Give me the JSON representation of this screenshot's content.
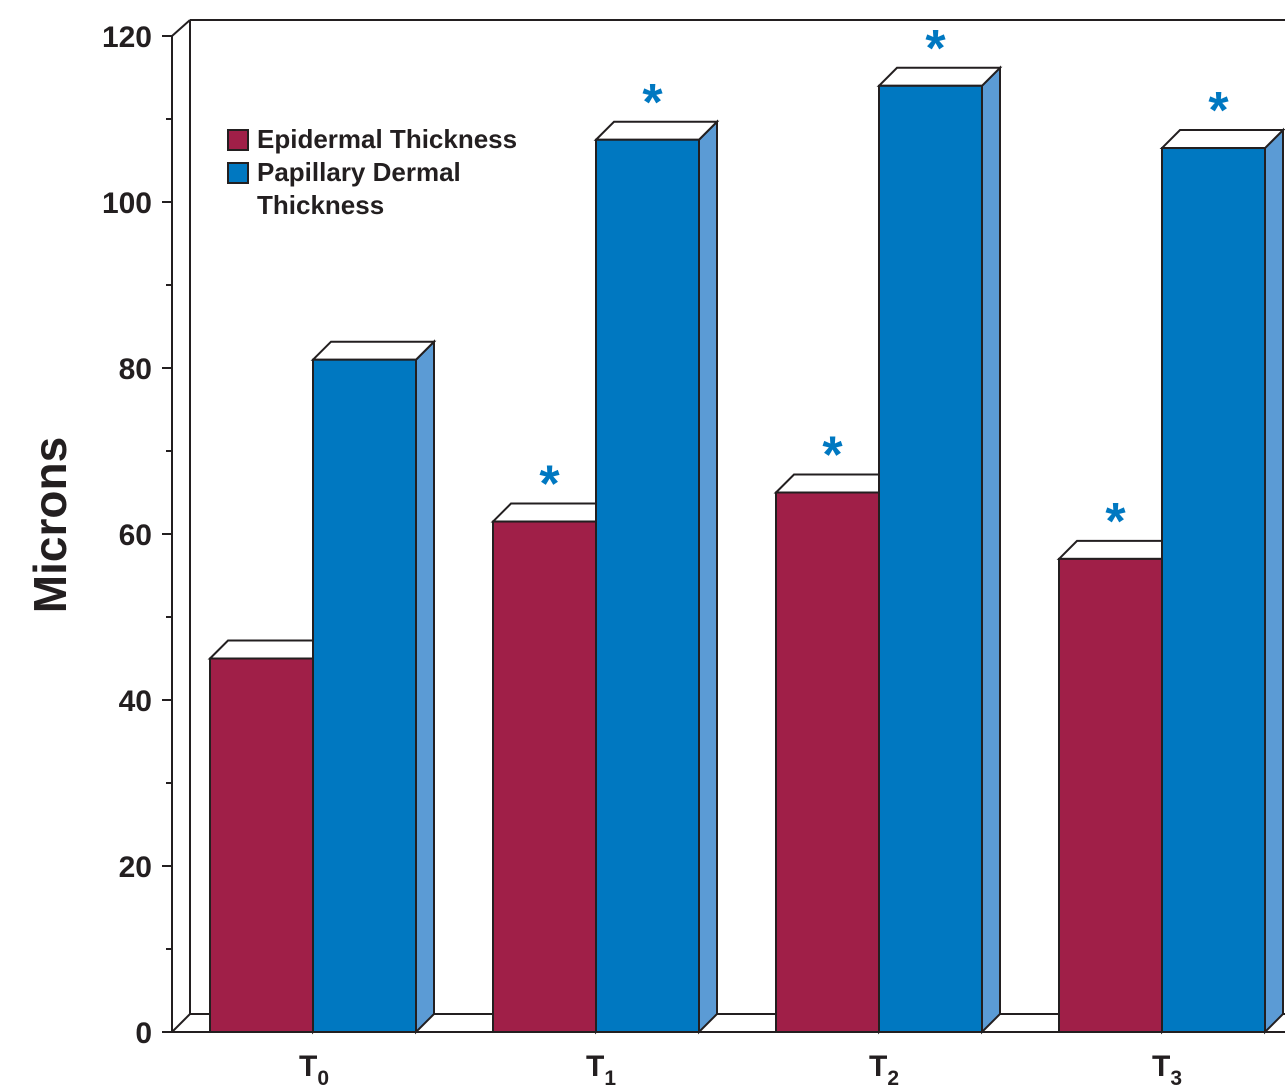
{
  "chart_data": {
    "type": "bar",
    "ylabel": "Microns",
    "ylim": [
      0,
      120
    ],
    "yticks": [
      0,
      20,
      40,
      60,
      80,
      100,
      120
    ],
    "grid": false,
    "legend_position": "top-left",
    "categories": [
      {
        "base": "T",
        "sub": "0"
      },
      {
        "base": "T",
        "sub": "1"
      },
      {
        "base": "T",
        "sub": "2"
      },
      {
        "base": "T",
        "sub": "3"
      }
    ],
    "series": [
      {
        "name": "Epidermal Thickness",
        "color": "#a01f48",
        "values": [
          45,
          61.5,
          65,
          57
        ],
        "significant": [
          false,
          true,
          true,
          true
        ]
      },
      {
        "name": "Papillary Dermal Thickness",
        "name_lines": [
          "Papillary Dermal",
          "Thickness"
        ],
        "color": "#0078c1",
        "side_color": "#5b9bd5",
        "values": [
          81,
          107.5,
          114,
          106.5
        ],
        "significant": [
          false,
          true,
          true,
          true
        ]
      }
    ],
    "significance_marker": "*"
  }
}
